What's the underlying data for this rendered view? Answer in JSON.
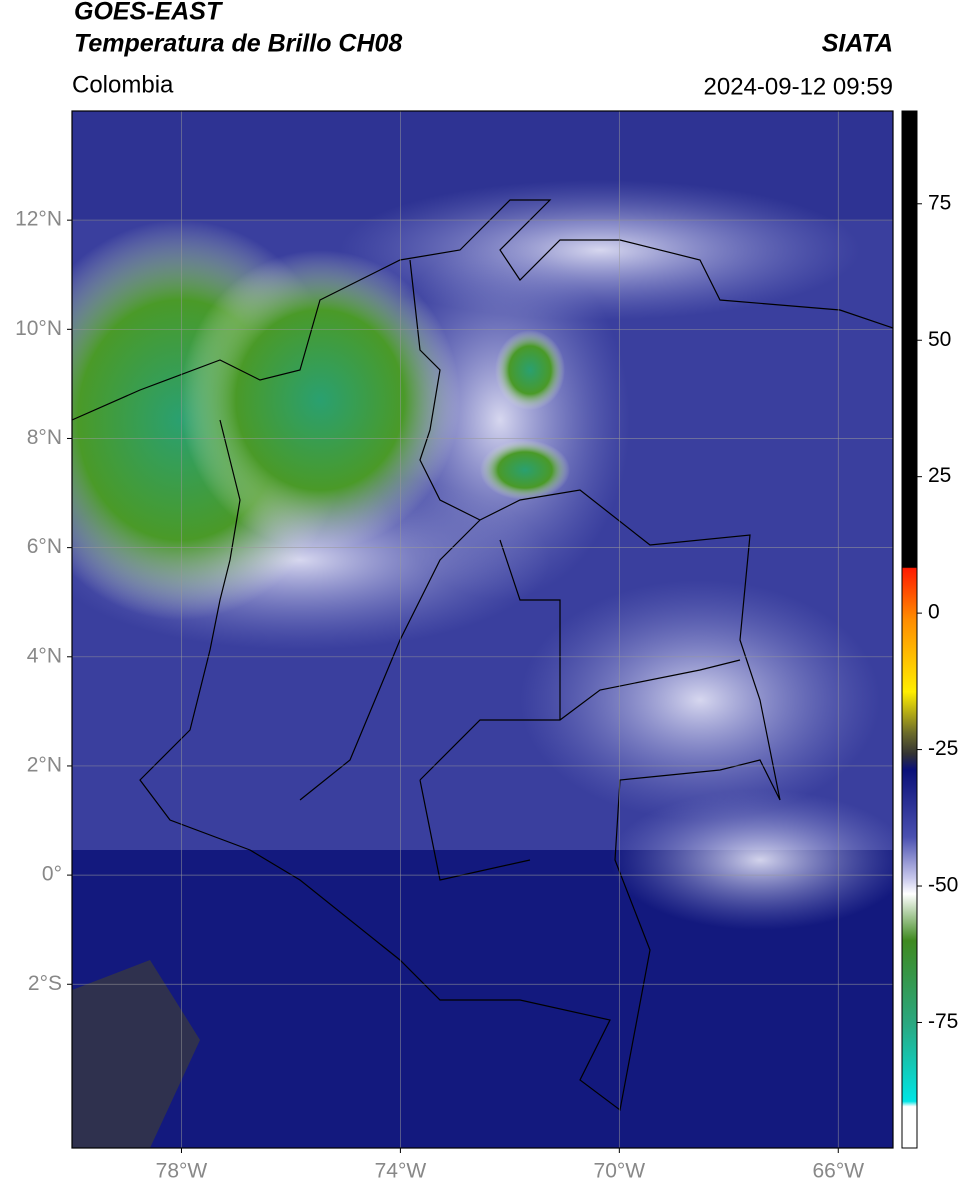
{
  "header": {
    "title": "GOES-EAST",
    "subtitle": "Temperatura de Brillo CH08",
    "region": "Colombia",
    "source": "SIATA",
    "datetime": "2024-09-12 09:59"
  },
  "map": {
    "xlim": [
      -80,
      -65
    ],
    "ylim": [
      -5,
      14
    ],
    "xticks": [
      {
        "value": -78,
        "label": "78°W"
      },
      {
        "value": -74,
        "label": "74°W"
      },
      {
        "value": -70,
        "label": "70°W"
      },
      {
        "value": -66,
        "label": "66°W"
      }
    ],
    "yticks": [
      {
        "value": 12,
        "label": "12°N"
      },
      {
        "value": 10,
        "label": "10°N"
      },
      {
        "value": 8,
        "label": "8°N"
      },
      {
        "value": 6,
        "label": "6°N"
      },
      {
        "value": 4,
        "label": "4°N"
      },
      {
        "value": 2,
        "label": "2°N"
      },
      {
        "value": 0,
        "label": "0°"
      },
      {
        "value": -2,
        "label": "2°S"
      }
    ],
    "grid": true
  },
  "colorbar": {
    "lim": [
      -98,
      92
    ],
    "ticks": [
      75,
      50,
      25,
      0,
      -25,
      -50,
      -75
    ]
  }
}
